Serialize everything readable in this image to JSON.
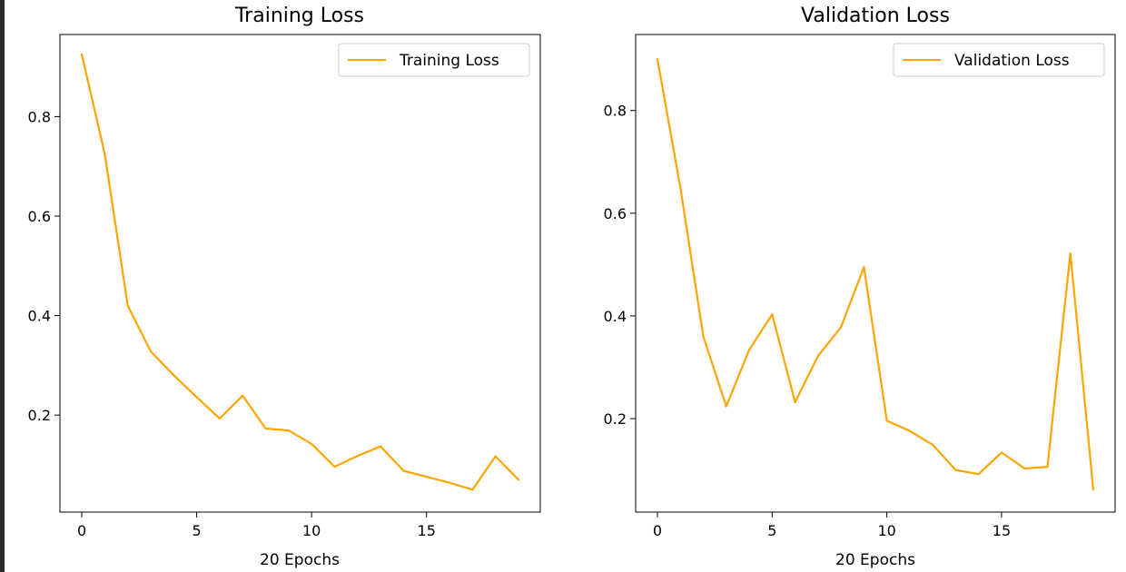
{
  "chart_data": [
    {
      "type": "line",
      "title": "Training Loss",
      "xlabel": "20 Epochs",
      "ylabel": "",
      "legend_position": "top-right",
      "xlim": [
        -0.95,
        19.95
      ],
      "ylim": [
        0.005,
        0.965
      ],
      "xticks": [
        0,
        5,
        10,
        15
      ],
      "yticks": [
        0.2,
        0.4,
        0.6,
        0.8
      ],
      "grid": false,
      "series": [
        {
          "name": "Training Loss",
          "color": "#ffa500",
          "x": [
            0,
            1,
            2,
            3,
            4,
            5,
            6,
            7,
            8,
            9,
            10,
            11,
            12,
            13,
            14,
            15,
            16,
            17,
            18,
            19
          ],
          "y": [
            0.925,
            0.725,
            0.42,
            0.328,
            0.28,
            0.236,
            0.193,
            0.239,
            0.173,
            0.169,
            0.142,
            0.096,
            0.118,
            0.137,
            0.088,
            0.076,
            0.064,
            0.05,
            0.117,
            0.07
          ]
        }
      ]
    },
    {
      "type": "line",
      "title": "Validation Loss",
      "xlabel": "20 Epochs",
      "ylabel": "",
      "legend_position": "top-right",
      "xlim": [
        -0.95,
        19.95
      ],
      "ylim": [
        0.018,
        0.948
      ],
      "xticks": [
        0,
        5,
        10,
        15
      ],
      "yticks": [
        0.2,
        0.4,
        0.6,
        0.8
      ],
      "grid": false,
      "series": [
        {
          "name": "Validation Loss",
          "color": "#ffa500",
          "x": [
            0,
            1,
            2,
            3,
            4,
            5,
            6,
            7,
            8,
            9,
            10,
            11,
            12,
            13,
            14,
            15,
            16,
            17,
            18,
            19
          ],
          "y": [
            0.9,
            0.65,
            0.36,
            0.224,
            0.334,
            0.403,
            0.232,
            0.322,
            0.378,
            0.495,
            0.196,
            0.176,
            0.149,
            0.1,
            0.092,
            0.134,
            0.103,
            0.106,
            0.522,
            0.062
          ]
        }
      ]
    }
  ]
}
